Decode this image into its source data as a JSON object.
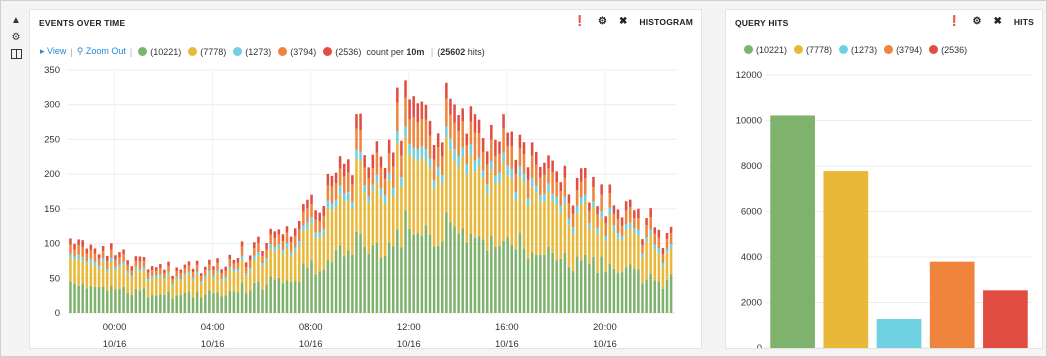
{
  "sidebar": {
    "icons": [
      "caret-up-icon",
      "gear-icon",
      "columns-icon"
    ]
  },
  "histogram_panel": {
    "title": "EVENTS OVER TIME",
    "tool_label": "HISTOGRAM",
    "legend": {
      "view_label": "View",
      "zoom_out_label": "Zoom Out",
      "count_prefix": "count per",
      "interval": "10m",
      "total_hits": "25602",
      "hits_suffix": "hits"
    }
  },
  "hits_panel": {
    "title": "QUERY HITS",
    "tool_label": "HITS"
  },
  "series": [
    {
      "label": "(10221)",
      "count": 10221,
      "color": "#7eb26d"
    },
    {
      "label": "(7778)",
      "count": 7778,
      "color": "#eab839"
    },
    {
      "label": "(1273)",
      "count": 1273,
      "color": "#6ed0e0"
    },
    {
      "label": "(3794)",
      "count": 3794,
      "color": "#ef843c"
    },
    {
      "label": "(2536)",
      "count": 2536,
      "color": "#e24d42"
    }
  ],
  "chart_data": [
    {
      "type": "bar",
      "stacked": true,
      "ylim": [
        0,
        350
      ],
      "yticks": [
        0,
        50,
        100,
        150,
        200,
        250,
        300,
        350
      ],
      "x_tick_labels": [
        {
          "time": "00:00",
          "date": "10/16"
        },
        {
          "time": "04:00",
          "date": "10/16"
        },
        {
          "time": "08:00",
          "date": "10/16"
        },
        {
          "time": "12:00",
          "date": "10/16"
        },
        {
          "time": "16:00",
          "date": "10/16"
        },
        {
          "time": "20:00",
          "date": "10/16"
        }
      ],
      "x_range_hours": [
        -1.9,
        22.9
      ],
      "bin_minutes": 10,
      "grid": true,
      "total_envelope": {
        "hours": [
          -1.8,
          -1,
          0,
          1,
          2,
          3,
          4,
          5,
          6,
          7,
          8,
          9,
          10,
          11,
          12,
          13,
          14,
          15,
          16,
          17,
          18,
          19,
          20,
          21,
          22,
          22.8
        ],
        "totals": [
          112,
          100,
          88,
          78,
          72,
          63,
          72,
          84,
          98,
          125,
          168,
          205,
          238,
          268,
          290,
          290,
          285,
          275,
          255,
          232,
          205,
          190,
          170,
          148,
          125,
          105
        ]
      },
      "series_share": [
        0.4,
        0.35,
        0.05,
        0.12,
        0.08
      ]
    },
    {
      "type": "bar",
      "categories": [
        "(10221)",
        "(7778)",
        "(1273)",
        "(3794)",
        "(2536)"
      ],
      "values": [
        10221,
        7778,
        1273,
        3794,
        2536
      ],
      "ylim": [
        0,
        12000
      ],
      "yticks": [
        0,
        2000,
        4000,
        6000,
        8000,
        10000,
        12000
      ],
      "grid": true
    }
  ]
}
